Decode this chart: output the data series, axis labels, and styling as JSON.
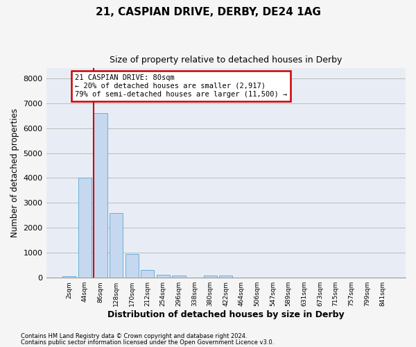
{
  "title1": "21, CASPIAN DRIVE, DERBY, DE24 1AG",
  "title2": "Size of property relative to detached houses in Derby",
  "xlabel": "Distribution of detached houses by size in Derby",
  "ylabel": "Number of detached properties",
  "footnote1": "Contains HM Land Registry data © Crown copyright and database right 2024.",
  "footnote2": "Contains public sector information licensed under the Open Government Licence v3.0.",
  "bar_labels": [
    "2sqm",
    "44sqm",
    "86sqm",
    "128sqm",
    "170sqm",
    "212sqm",
    "254sqm",
    "296sqm",
    "338sqm",
    "380sqm",
    "422sqm",
    "464sqm",
    "506sqm",
    "547sqm",
    "589sqm",
    "631sqm",
    "673sqm",
    "715sqm",
    "757sqm",
    "799sqm",
    "841sqm"
  ],
  "bar_values": [
    60,
    4000,
    6600,
    2600,
    950,
    300,
    120,
    100,
    0,
    90,
    80,
    0,
    0,
    0,
    0,
    0,
    0,
    0,
    0,
    0,
    0
  ],
  "bar_color": "#c5d8ef",
  "bar_edgecolor": "#6aaed6",
  "vline_color": "#cc0000",
  "vline_xindex": 1.55,
  "annotation_text": "21 CASPIAN DRIVE: 80sqm\n← 20% of detached houses are smaller (2,917)\n79% of semi-detached houses are larger (11,500) →",
  "annotation_box_edgecolor": "#cc0000",
  "ylim": [
    0,
    8400
  ],
  "yticks": [
    0,
    1000,
    2000,
    3000,
    4000,
    5000,
    6000,
    7000,
    8000
  ],
  "grid_color": "#bbbbbb",
  "axes_bg_color": "#e8edf5",
  "fig_bg_color": "#f5f5f5"
}
